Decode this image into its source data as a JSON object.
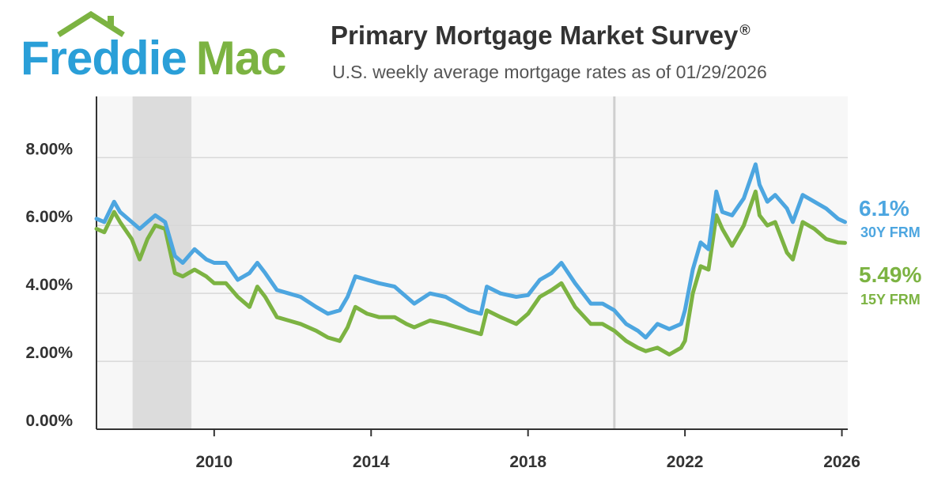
{
  "brand": {
    "part1": "Freddie",
    "part2": "Mac",
    "blue": "#2a9fd8",
    "green": "#7cb342"
  },
  "header": {
    "title": "Primary Mortgage Market Survey",
    "title_mark": "®",
    "subtitle": "U.S. weekly average mortgage rates as of 01/29/2026"
  },
  "chart_data": {
    "type": "line",
    "title": "Primary Mortgage Market Survey®",
    "subtitle": "U.S. weekly average mortgage rates as of 01/29/2026",
    "xlabel": "",
    "ylabel": "",
    "xlim": [
      2007.0,
      2026.15
    ],
    "ylim": [
      0,
      9.8
    ],
    "x_ticks": [
      2010,
      2014,
      2018,
      2022,
      2026
    ],
    "x_tick_labels": [
      "2010",
      "2014",
      "2018",
      "2022",
      "2026"
    ],
    "y_ticks": [
      0,
      2,
      4,
      6,
      8
    ],
    "y_tick_labels": [
      "0.00%",
      "2.00%",
      "4.00%",
      "6.00%",
      "8.00%"
    ],
    "grid": true,
    "shaded_periods": [
      {
        "start": 2007.92,
        "end": 2009.42
      }
    ],
    "reference_lines": [
      {
        "x": 2020.2
      }
    ],
    "series": [
      {
        "name": "30Y FRM",
        "color": "#4da6e0",
        "end_label": "6.1%",
        "x": [
          2007.0,
          2007.2,
          2007.45,
          2007.6,
          2007.9,
          2008.1,
          2008.3,
          2008.5,
          2008.75,
          2009.0,
          2009.2,
          2009.5,
          2009.8,
          2010.0,
          2010.3,
          2010.6,
          2010.9,
          2011.1,
          2011.3,
          2011.6,
          2011.9,
          2012.2,
          2012.6,
          2012.9,
          2013.2,
          2013.4,
          2013.6,
          2013.9,
          2014.2,
          2014.6,
          2014.9,
          2015.1,
          2015.5,
          2015.9,
          2016.2,
          2016.5,
          2016.8,
          2016.95,
          2017.3,
          2017.7,
          2018.0,
          2018.3,
          2018.6,
          2018.85,
          2019.2,
          2019.6,
          2019.9,
          2020.2,
          2020.5,
          2020.8,
          2021.0,
          2021.3,
          2021.6,
          2021.9,
          2022.0,
          2022.2,
          2022.4,
          2022.6,
          2022.8,
          2022.95,
          2023.2,
          2023.5,
          2023.8,
          2023.9,
          2024.1,
          2024.3,
          2024.6,
          2024.75,
          2025.0,
          2025.3,
          2025.6,
          2025.9,
          2026.08
        ],
        "values": [
          6.2,
          6.1,
          6.7,
          6.4,
          6.1,
          5.9,
          6.1,
          6.3,
          6.1,
          5.1,
          4.9,
          5.3,
          5.0,
          4.9,
          4.9,
          4.4,
          4.6,
          4.9,
          4.6,
          4.1,
          4.0,
          3.9,
          3.6,
          3.4,
          3.5,
          3.9,
          4.5,
          4.4,
          4.3,
          4.2,
          3.9,
          3.7,
          4.0,
          3.9,
          3.7,
          3.5,
          3.4,
          4.2,
          4.0,
          3.9,
          3.95,
          4.4,
          4.6,
          4.9,
          4.3,
          3.7,
          3.7,
          3.5,
          3.1,
          2.9,
          2.7,
          3.1,
          2.95,
          3.1,
          3.5,
          4.7,
          5.5,
          5.3,
          7.0,
          6.4,
          6.3,
          6.8,
          7.8,
          7.2,
          6.7,
          6.9,
          6.5,
          6.1,
          6.9,
          6.7,
          6.5,
          6.2,
          6.1
        ]
      },
      {
        "name": "15Y FRM",
        "color": "#7cb342",
        "end_label": "5.49%",
        "x": [
          2007.0,
          2007.2,
          2007.45,
          2007.6,
          2007.9,
          2008.1,
          2008.3,
          2008.5,
          2008.75,
          2009.0,
          2009.2,
          2009.5,
          2009.8,
          2010.0,
          2010.3,
          2010.6,
          2010.9,
          2011.1,
          2011.3,
          2011.6,
          2011.9,
          2012.2,
          2012.6,
          2012.9,
          2013.2,
          2013.4,
          2013.6,
          2013.9,
          2014.2,
          2014.6,
          2014.9,
          2015.1,
          2015.5,
          2015.9,
          2016.2,
          2016.5,
          2016.8,
          2016.95,
          2017.3,
          2017.7,
          2018.0,
          2018.3,
          2018.6,
          2018.85,
          2019.2,
          2019.6,
          2019.9,
          2020.2,
          2020.5,
          2020.8,
          2021.0,
          2021.3,
          2021.6,
          2021.9,
          2022.0,
          2022.2,
          2022.4,
          2022.6,
          2022.8,
          2022.95,
          2023.2,
          2023.5,
          2023.8,
          2023.9,
          2024.1,
          2024.3,
          2024.6,
          2024.75,
          2025.0,
          2025.3,
          2025.6,
          2025.9,
          2026.08
        ],
        "values": [
          5.9,
          5.8,
          6.4,
          6.1,
          5.6,
          5.0,
          5.6,
          6.0,
          5.9,
          4.6,
          4.5,
          4.7,
          4.5,
          4.3,
          4.3,
          3.9,
          3.6,
          4.2,
          3.9,
          3.3,
          3.2,
          3.1,
          2.9,
          2.7,
          2.6,
          3.0,
          3.6,
          3.4,
          3.3,
          3.3,
          3.1,
          3.0,
          3.2,
          3.1,
          3.0,
          2.9,
          2.8,
          3.5,
          3.3,
          3.1,
          3.4,
          3.9,
          4.1,
          4.3,
          3.6,
          3.1,
          3.1,
          2.9,
          2.6,
          2.4,
          2.3,
          2.4,
          2.2,
          2.4,
          2.6,
          4.0,
          4.8,
          4.7,
          6.3,
          5.9,
          5.4,
          6.0,
          7.0,
          6.3,
          6.0,
          6.1,
          5.2,
          5.0,
          6.1,
          5.9,
          5.6,
          5.5,
          5.49
        ]
      }
    ]
  }
}
